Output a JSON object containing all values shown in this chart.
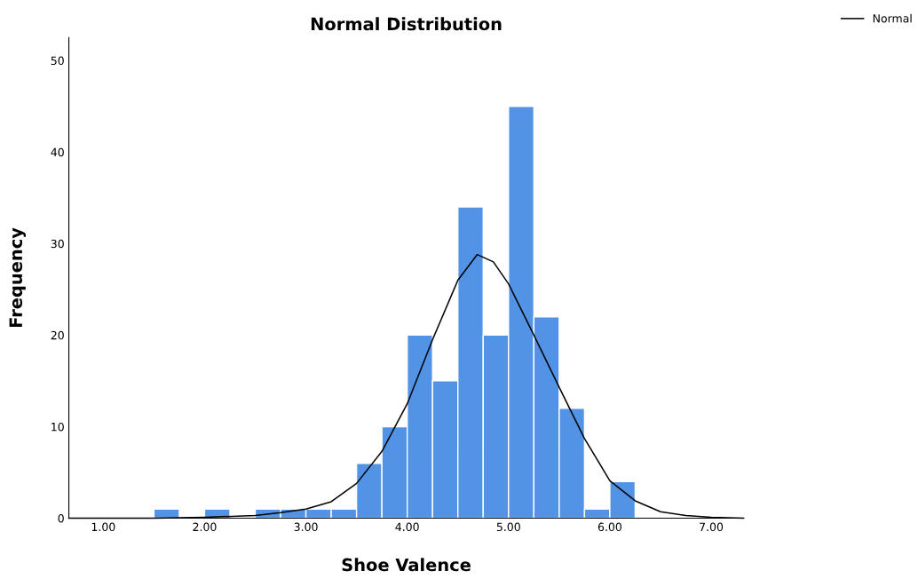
{
  "chart_data": {
    "type": "histogram",
    "title": "Normal Distribution",
    "xlabel": "Shoe Valence",
    "ylabel": "Frequency",
    "bins": [
      1.5,
      1.75,
      2.0,
      2.25,
      2.5,
      2.75,
      3.0,
      3.25,
      3.5,
      3.75,
      4.0,
      4.25,
      4.5,
      4.75,
      5.0,
      5.25,
      5.5,
      5.75,
      6.0,
      6.25
    ],
    "values": [
      1,
      0,
      1,
      0,
      1,
      1,
      1,
      1,
      6,
      10,
      20,
      15,
      34,
      20,
      45,
      22,
      12,
      1,
      4
    ],
    "color": "#5293e5",
    "series": [
      {
        "name": "Normal",
        "type": "line",
        "color": "#000000",
        "x": [
          0.66,
          1.5,
          2.0,
          2.5,
          2.75,
          3.0,
          3.25,
          3.5,
          3.75,
          4.0,
          4.25,
          4.5,
          4.69,
          4.85,
          5.0,
          5.25,
          5.5,
          5.75,
          6.0,
          6.25,
          6.5,
          6.75,
          7.0,
          7.32
        ],
        "values": [
          0,
          0,
          0.1,
          0.3,
          0.6,
          1.0,
          1.8,
          3.8,
          7.3,
          12.5,
          19.5,
          26.0,
          28.8,
          28.0,
          25.6,
          20.0,
          14.3,
          8.7,
          4.1,
          1.9,
          0.7,
          0.3,
          0.1,
          0
        ]
      }
    ],
    "xlim": [
      0.66,
      7.32
    ],
    "xticks": [
      {
        "value": 1,
        "label": "1.00"
      },
      {
        "value": 2,
        "label": "2.00"
      },
      {
        "value": 3,
        "label": "3.00"
      },
      {
        "value": 4,
        "label": "4.00"
      },
      {
        "value": 5,
        "label": "5.00"
      },
      {
        "value": 6,
        "label": "6.00"
      },
      {
        "value": 7,
        "label": "7.00"
      }
    ],
    "ylim": [
      0,
      52.5
    ],
    "yticks": [
      0,
      10,
      20,
      30,
      40,
      50
    ],
    "grid": false,
    "legend": "top right",
    "marker": "none",
    "line_style": "solid"
  }
}
